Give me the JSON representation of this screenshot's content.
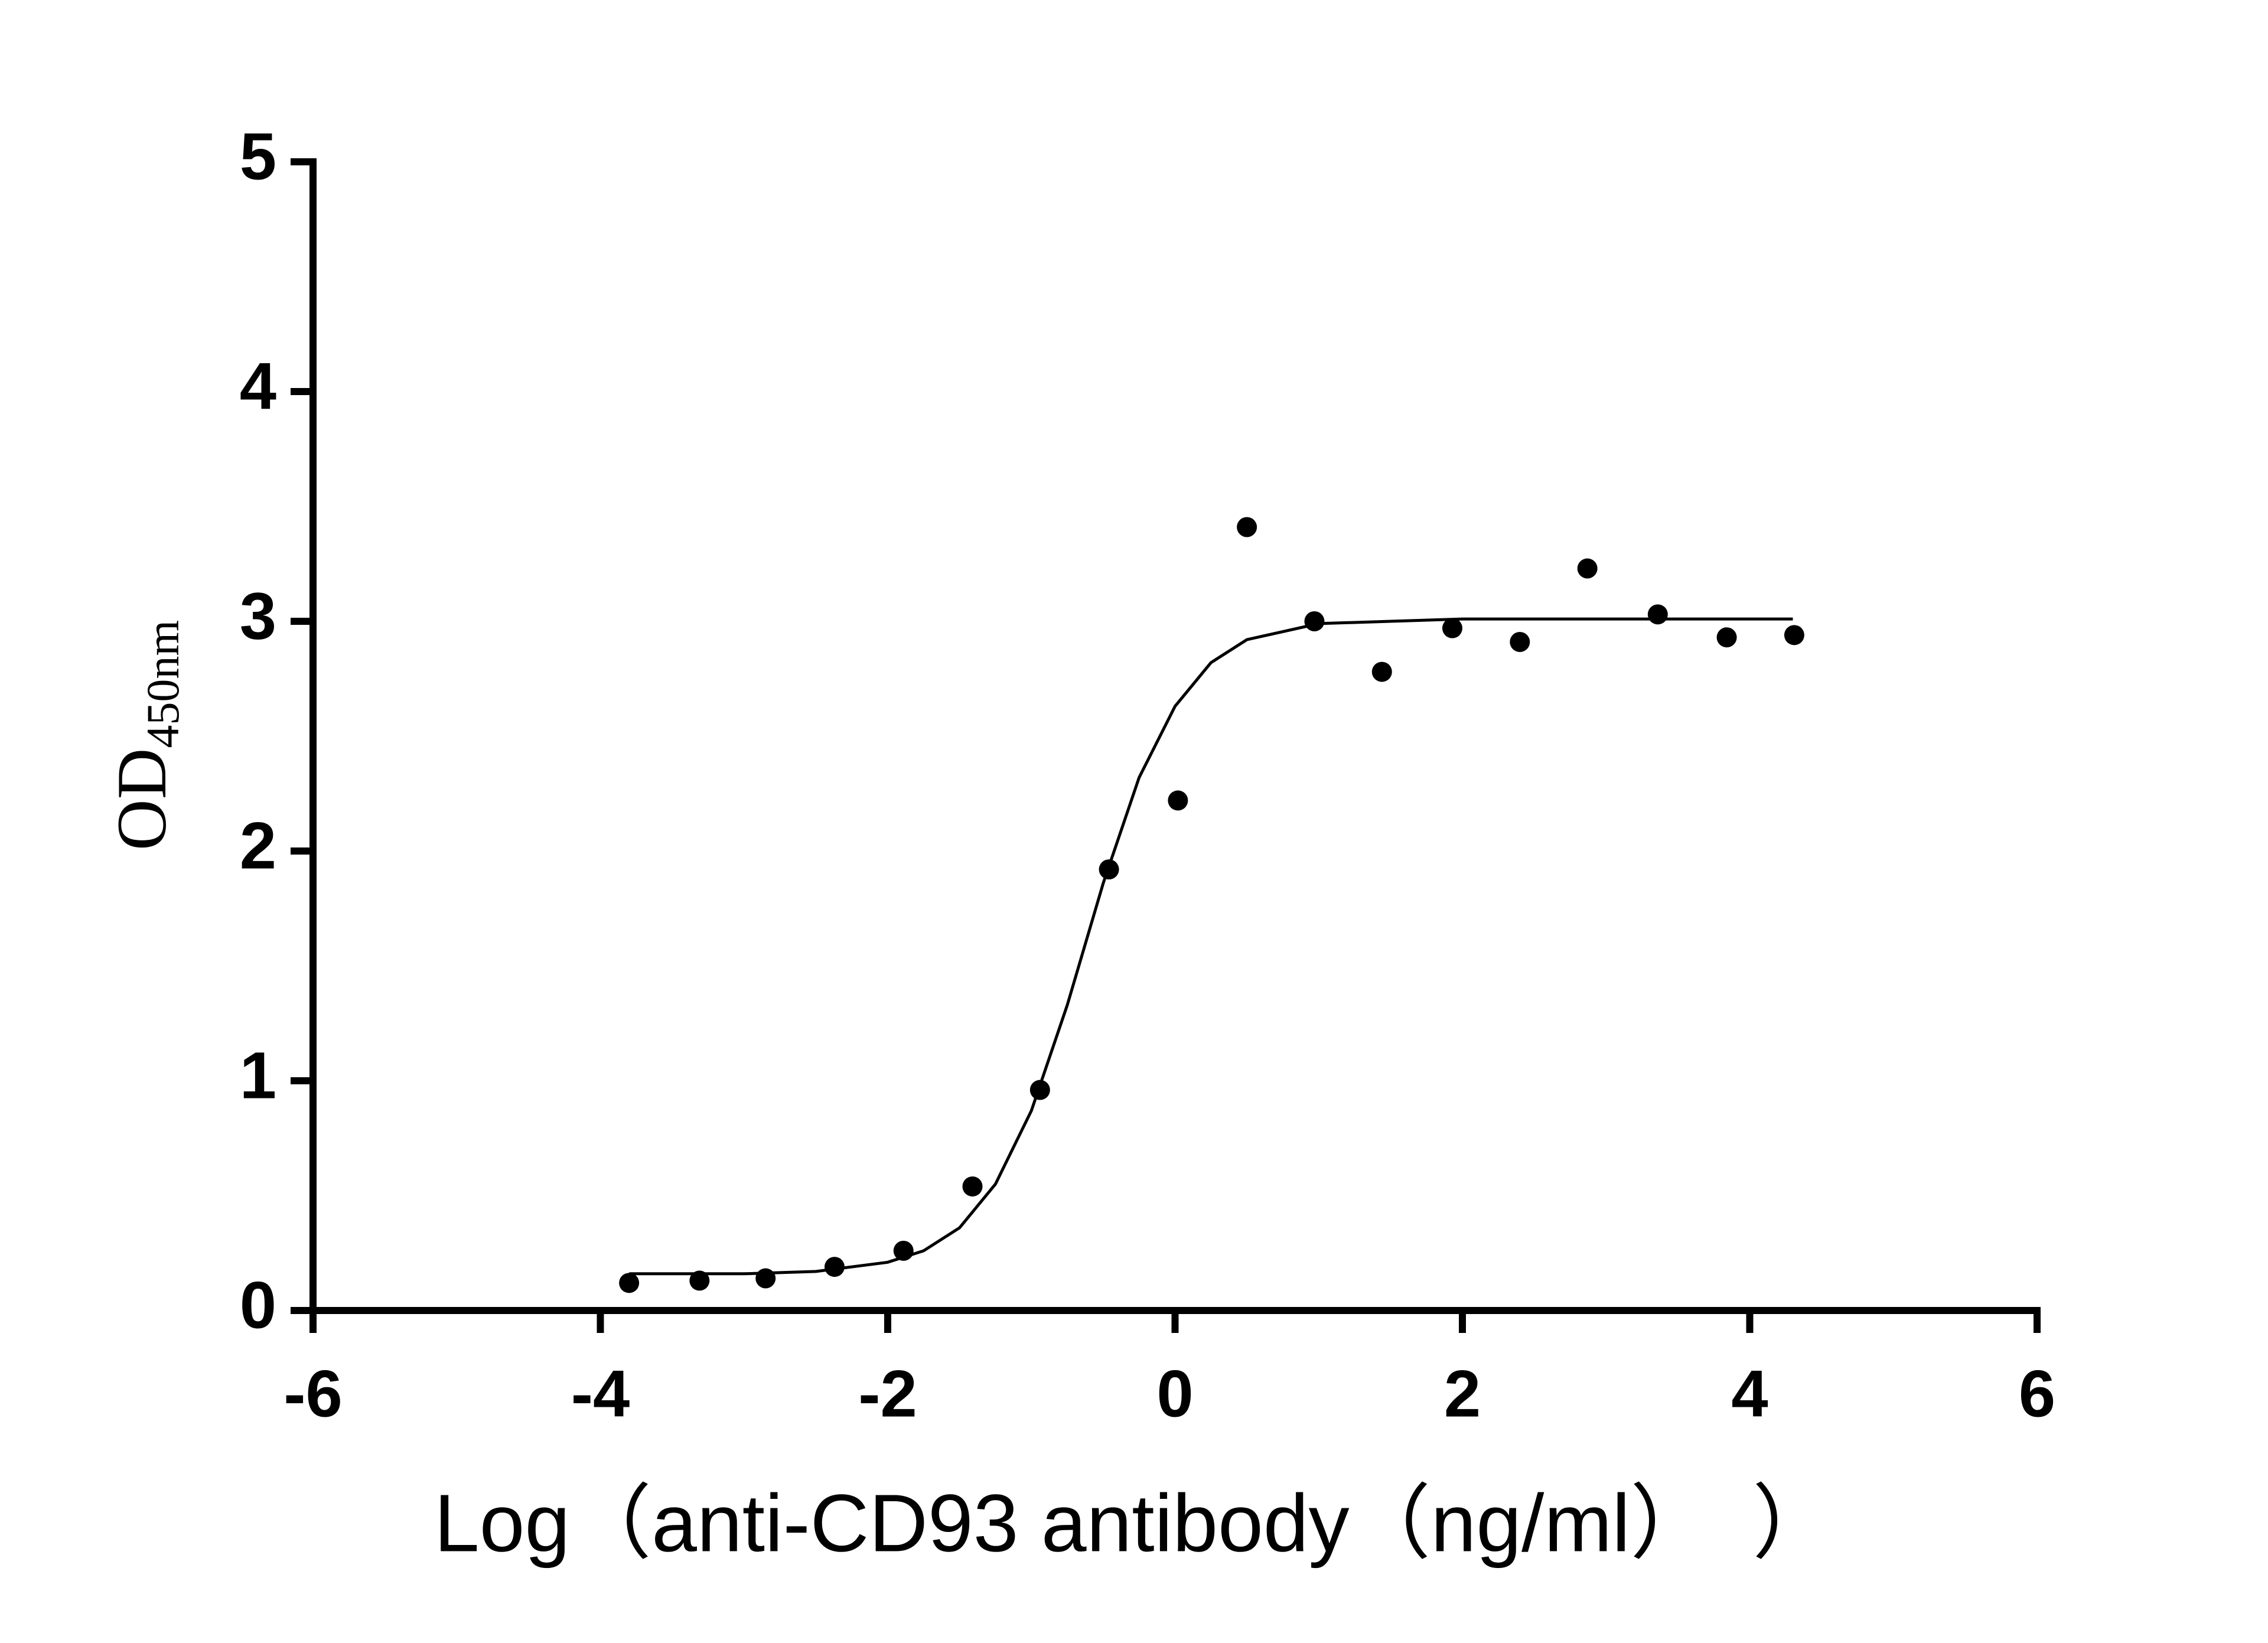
{
  "chart_data": {
    "type": "scatter",
    "x_label": "Log（anti-CD93 antibody（ng/ml）　）",
    "y_label": "OD",
    "y_label_subscript": "450nm",
    "xlim": [
      -6,
      6
    ],
    "xticks": [
      -6,
      -4,
      -2,
      0,
      2,
      4,
      6
    ],
    "ylim": [
      0,
      5
    ],
    "yticks": [
      0,
      1,
      2,
      3,
      4,
      5
    ],
    "series": [
      {
        "color": "#000000",
        "x": [
          -3.8,
          -3.31,
          -2.85,
          -2.37,
          -1.89,
          -1.41,
          -0.94,
          -0.46,
          0.02,
          0.5,
          0.97,
          1.44,
          1.93,
          2.4,
          2.87,
          3.36,
          3.84,
          4.31
        ],
        "values": [
          0.12,
          0.13,
          0.14,
          0.19,
          0.26,
          0.54,
          0.96,
          1.92,
          2.22,
          3.41,
          3.0,
          2.78,
          2.97,
          2.91,
          3.23,
          3.03,
          2.93,
          2.94
        ]
      }
    ],
    "fit": {
      "color": "#000000",
      "x": [
        -3.8,
        -3,
        -2.5,
        -2,
        -1.75,
        -1.5,
        -1.25,
        -1,
        -0.75,
        -0.5,
        -0.25,
        0,
        0.25,
        0.5,
        1,
        1.5,
        2,
        3,
        4.3
      ],
      "values": [
        0.16,
        0.16,
        0.17,
        0.21,
        0.26,
        0.36,
        0.55,
        0.87,
        1.33,
        1.86,
        2.32,
        2.63,
        2.82,
        2.92,
        2.99,
        3.0,
        3.01,
        3.01,
        3.01
      ]
    }
  }
}
